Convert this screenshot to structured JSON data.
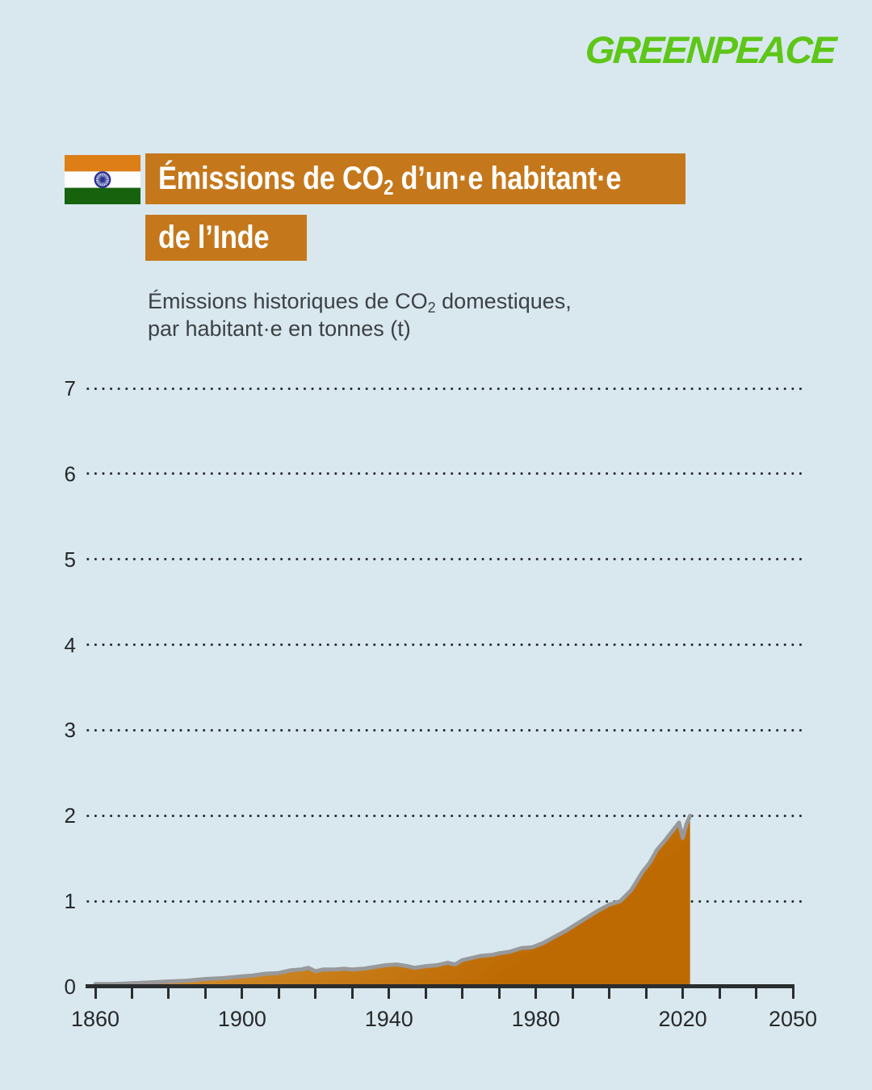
{
  "brand": {
    "logo_text": "GREENPEACE",
    "logo_color": "#5DC617"
  },
  "header": {
    "flag_name": "india-flag",
    "banner_color": "#C5781B",
    "title_line1": {
      "pre": "Émissions de CO",
      "sub": "2",
      "post": " d’un·e habitant·e"
    },
    "title_line2": "de l’Inde",
    "subtitle": {
      "line1_pre": "Émissions historiques de CO",
      "line1_sub": "2",
      "line1_post": " domestiques,",
      "line2": "par habitant·e en tonnes (t)"
    }
  },
  "chart_data": {
    "type": "area",
    "title": "Émissions historiques de CO2 domestiques, par habitant·e en tonnes (t)",
    "series_name": "Émissions de CO2 d’un·e habitant·e de l’Inde",
    "xlabel": "",
    "ylabel": "tonnes (t)",
    "xlim": [
      1860,
      2050
    ],
    "ylim": [
      0,
      7
    ],
    "yticks": [
      0,
      1,
      2,
      3,
      4,
      5,
      6,
      7
    ],
    "xtick_minor_step": 10,
    "xtick_labels": [
      1860,
      1900,
      1940,
      1980,
      2020,
      2050
    ],
    "grid": "dotted-horizontal",
    "legend": "none",
    "points": [
      [
        1860,
        0.03
      ],
      [
        1865,
        0.03
      ],
      [
        1870,
        0.04
      ],
      [
        1875,
        0.05
      ],
      [
        1880,
        0.06
      ],
      [
        1885,
        0.07
      ],
      [
        1890,
        0.09
      ],
      [
        1895,
        0.1
      ],
      [
        1900,
        0.12
      ],
      [
        1903,
        0.13
      ],
      [
        1906,
        0.15
      ],
      [
        1910,
        0.16
      ],
      [
        1913,
        0.19
      ],
      [
        1916,
        0.2
      ],
      [
        1918,
        0.22
      ],
      [
        1920,
        0.18
      ],
      [
        1922,
        0.2
      ],
      [
        1925,
        0.2
      ],
      [
        1928,
        0.21
      ],
      [
        1930,
        0.2
      ],
      [
        1933,
        0.21
      ],
      [
        1936,
        0.23
      ],
      [
        1939,
        0.25
      ],
      [
        1942,
        0.26
      ],
      [
        1945,
        0.24
      ],
      [
        1947,
        0.22
      ],
      [
        1950,
        0.24
      ],
      [
        1953,
        0.25
      ],
      [
        1956,
        0.28
      ],
      [
        1958,
        0.26
      ],
      [
        1960,
        0.31
      ],
      [
        1963,
        0.34
      ],
      [
        1965,
        0.36
      ],
      [
        1968,
        0.37
      ],
      [
        1970,
        0.39
      ],
      [
        1973,
        0.41
      ],
      [
        1976,
        0.45
      ],
      [
        1979,
        0.46
      ],
      [
        1982,
        0.51
      ],
      [
        1985,
        0.58
      ],
      [
        1988,
        0.65
      ],
      [
        1991,
        0.73
      ],
      [
        1994,
        0.81
      ],
      [
        1997,
        0.89
      ],
      [
        2000,
        0.96
      ],
      [
        2003,
        1.0
      ],
      [
        2006,
        1.13
      ],
      [
        2009,
        1.34
      ],
      [
        2011,
        1.45
      ],
      [
        2013,
        1.6
      ],
      [
        2015,
        1.7
      ],
      [
        2017,
        1.81
      ],
      [
        2019,
        1.92
      ],
      [
        2020,
        1.74
      ],
      [
        2021,
        1.9
      ],
      [
        2022,
        2.0
      ]
    ],
    "colors": {
      "area_light": "#E0AA61",
      "area_mid": "#CE8827",
      "area_dark": "#BE6A02",
      "line": "#98999B",
      "axis": "#2A2D2F",
      "grid_dots": "#2C2F31",
      "tick_text": "#26292B"
    }
  }
}
